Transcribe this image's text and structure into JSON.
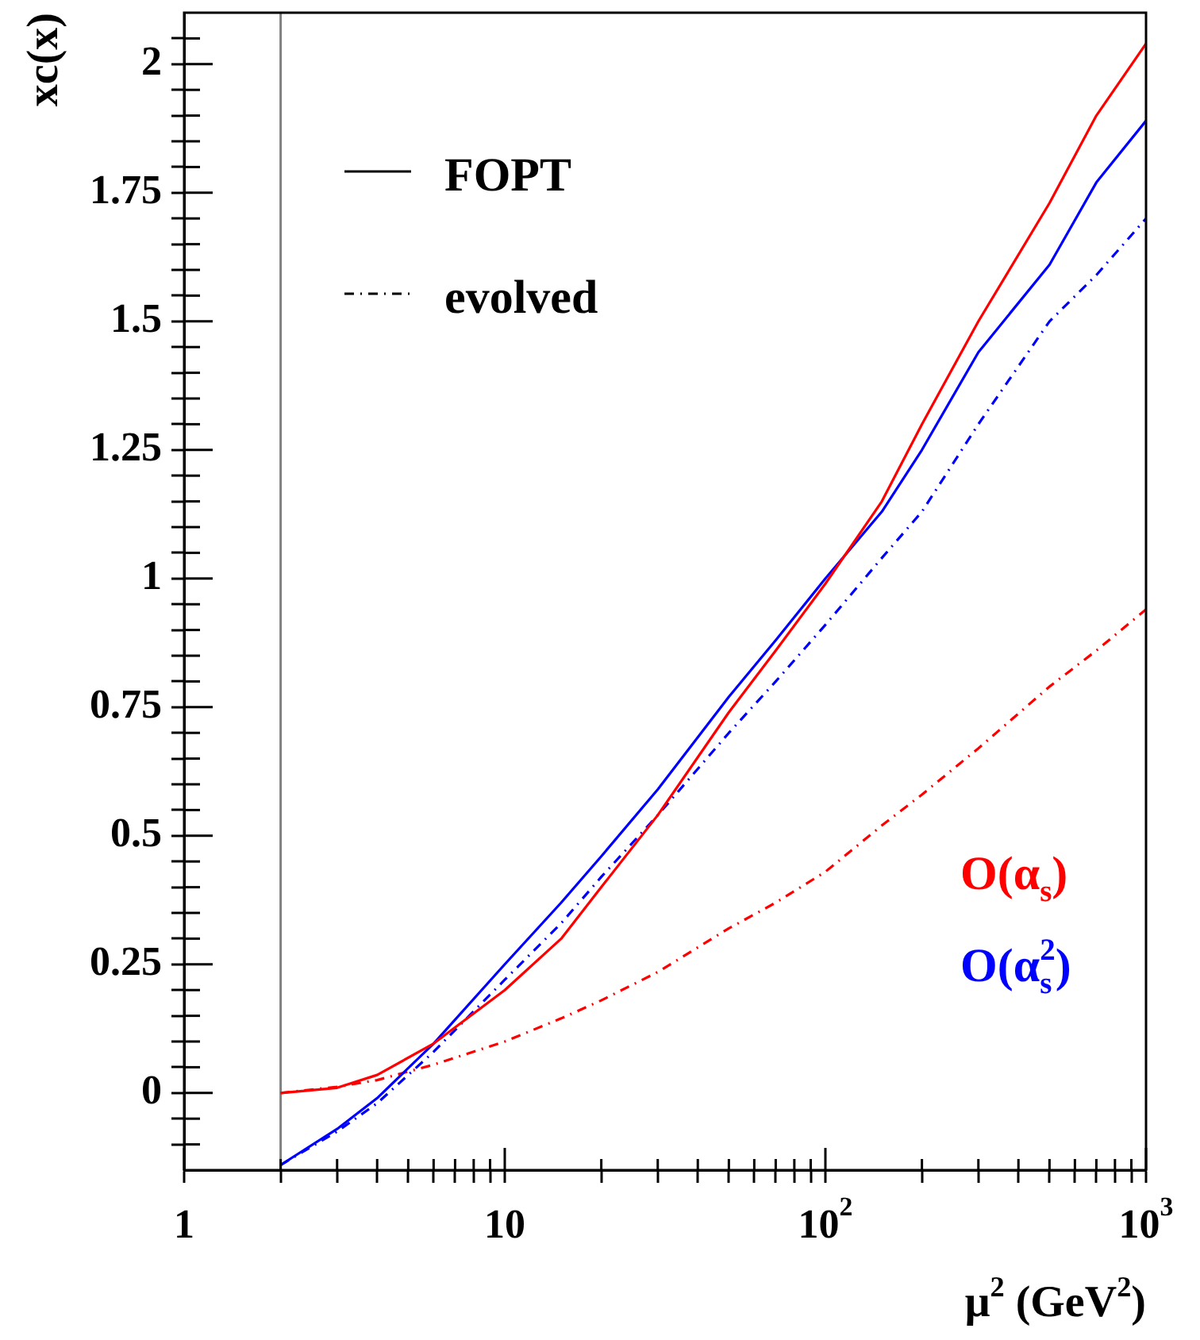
{
  "chart_data": {
    "type": "line",
    "xlabel": "μ$^{2}$ (GeV$^{2}$)",
    "ylabel": "xc(x)",
    "annotations": [
      "FOPT",
      "evolved",
      "O(α$_{s}$)",
      "O(α$_{s}$$^{2}$)"
    ],
    "log": "x",
    "marker": "none",
    "xlim": [
      1,
      1000
    ],
    "ylim": [
      -0.15,
      2.1
    ],
    "xticks": [
      1,
      {
        "value": 2,
        "label": null
      },
      {
        "value": 3,
        "label": null
      },
      {
        "value": 4,
        "label": null
      },
      {
        "value": 5,
        "label": null
      },
      {
        "value": 6,
        "label": null
      },
      {
        "value": 7,
        "label": null
      },
      {
        "value": 8,
        "label": null
      },
      {
        "value": 9,
        "label": null
      },
      10,
      {
        "value": 20,
        "label": null
      },
      {
        "value": 30,
        "label": null
      },
      {
        "value": 40,
        "label": null
      },
      {
        "value": 50,
        "label": null
      },
      {
        "value": 60,
        "label": null
      },
      {
        "value": 70,
        "label": null
      },
      {
        "value": 80,
        "label": null
      },
      {
        "value": 90,
        "label": null
      },
      {
        "value": 100,
        "label": "10$^{2}$"
      },
      {
        "value": 200,
        "label": null
      },
      {
        "value": 300,
        "label": null
      },
      {
        "value": 400,
        "label": null
      },
      {
        "value": 500,
        "label": null
      },
      {
        "value": 600,
        "label": null
      },
      {
        "value": 700,
        "label": null
      },
      {
        "value": 800,
        "label": null
      },
      {
        "value": 900,
        "label": null
      },
      {
        "value": 1000,
        "label": "10$^{3}$"
      }
    ],
    "yticks": [
      {
        "value": -0.1,
        "label": null
      },
      {
        "value": -0.05,
        "label": null
      },
      0,
      {
        "value": 0.05,
        "label": null
      },
      {
        "value": 0.1,
        "label": null
      },
      {
        "value": 0.15,
        "label": null
      },
      {
        "value": 0.2,
        "label": null
      },
      0.25,
      {
        "value": 0.3,
        "label": null
      },
      {
        "value": 0.35,
        "label": null
      },
      {
        "value": 0.4,
        "label": null
      },
      {
        "value": 0.45,
        "label": null
      },
      0.5,
      {
        "value": 0.55,
        "label": null
      },
      {
        "value": 0.6,
        "label": null
      },
      {
        "value": 0.65,
        "label": null
      },
      {
        "value": 0.7,
        "label": null
      },
      0.75,
      {
        "value": 0.8,
        "label": null
      },
      {
        "value": 0.85,
        "label": null
      },
      {
        "value": 0.9,
        "label": null
      },
      {
        "value": 0.95,
        "label": null
      },
      1,
      {
        "value": 1.05,
        "label": null
      },
      {
        "value": 1.1,
        "label": null
      },
      {
        "value": 1.15,
        "label": null
      },
      {
        "value": 1.2,
        "label": null
      },
      1.25,
      {
        "value": 1.3,
        "label": null
      },
      {
        "value": 1.35,
        "label": null
      },
      {
        "value": 1.4,
        "label": null
      },
      {
        "value": 1.45,
        "label": null
      },
      1.5,
      {
        "value": 1.55,
        "label": null
      },
      {
        "value": 1.6,
        "label": null
      },
      {
        "value": 1.65,
        "label": null
      },
      {
        "value": 1.7,
        "label": null
      },
      1.75,
      {
        "value": 1.8,
        "label": null
      },
      {
        "value": 1.85,
        "label": null
      },
      {
        "value": 1.9,
        "label": null
      },
      {
        "value": 1.95,
        "label": null
      },
      2,
      {
        "value": 2.05,
        "label": null
      }
    ],
    "ref_lines": [
      {
        "axis": "x",
        "value": 2,
        "color": "#808080"
      }
    ],
    "x": [
      2,
      3,
      4,
      6,
      10,
      15,
      20,
      30,
      50,
      70,
      100,
      150,
      200,
      300,
      500,
      700,
      1000
    ],
    "series": [
      {
        "type": "line",
        "color": "#ff0000",
        "line_style": "solid",
        "values": [
          0,
          0.01,
          0.035,
          0.096,
          0.2,
          0.3,
          0.4,
          0.54,
          0.74,
          0.86,
          0.99,
          1.15,
          1.3,
          1.5,
          1.73,
          1.9,
          2.04
        ]
      },
      {
        "type": "line",
        "color": "#0000ff",
        "line_style": "solid",
        "values": [
          -0.14,
          -0.07,
          -0.01,
          0.096,
          0.25,
          0.37,
          0.46,
          0.59,
          0.77,
          0.88,
          1.0,
          1.13,
          1.25,
          1.44,
          1.61,
          1.77,
          1.89
        ]
      },
      {
        "type": "line",
        "color": "#ff0000",
        "line_style": "dashed",
        "values": [
          0,
          0.012,
          0.025,
          0.055,
          0.1,
          0.145,
          0.18,
          0.235,
          0.32,
          0.37,
          0.43,
          0.52,
          0.58,
          0.67,
          0.79,
          0.86,
          0.94
        ]
      },
      {
        "type": "line",
        "color": "#0000ff",
        "line_style": "dashed",
        "values": [
          -0.14,
          -0.075,
          -0.02,
          0.08,
          0.22,
          0.33,
          0.42,
          0.54,
          0.7,
          0.8,
          0.91,
          1.04,
          1.13,
          1.3,
          1.5,
          1.59,
          1.7
        ]
      }
    ]
  }
}
